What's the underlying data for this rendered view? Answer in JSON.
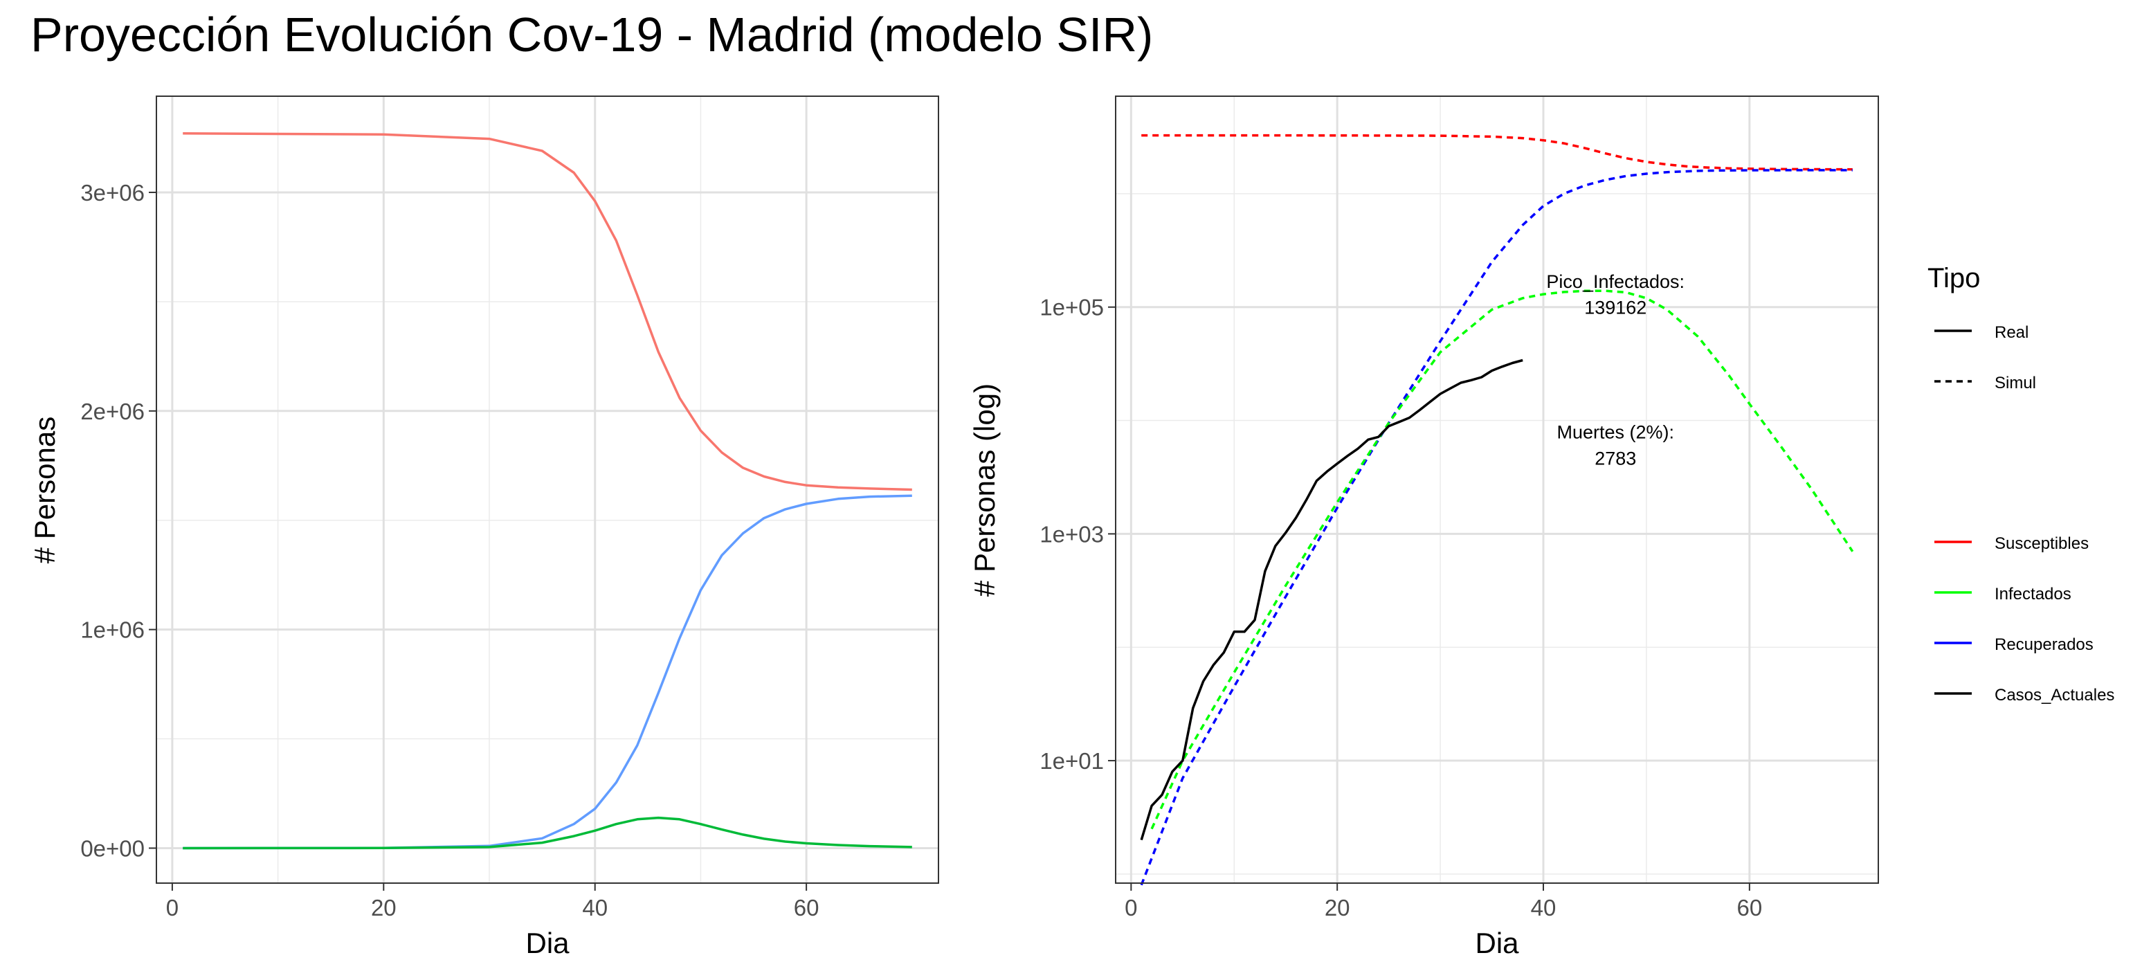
{
  "title": "Proyección Evolución Cov-19 - Madrid (modelo SIR)",
  "colors": {
    "susceptibles_left": "#F8766D",
    "recuperados_left": "#619CFF",
    "infectados_left": "#00BA38",
    "susceptibles": "#FF0000",
    "infectados": "#00FF00",
    "recuperados": "#0000FF",
    "casos": "#000000"
  },
  "chart_data": [
    {
      "type": "line",
      "panel": "left",
      "xlabel": "Dia",
      "ylabel": "# Personas",
      "xlim": [
        -1.5,
        72.5
      ],
      "ylim": [
        -160000,
        3440000
      ],
      "xticks": [
        0,
        20,
        40,
        60
      ],
      "xtick_labels": [
        "0",
        "20",
        "40",
        "60"
      ],
      "yticks": [
        0,
        1000000,
        2000000,
        3000000
      ],
      "ytick_labels": [
        "0e+00",
        "1e+06",
        "2e+06",
        "3e+06"
      ],
      "grid": true,
      "x": [
        1,
        20,
        30,
        35,
        38,
        40,
        42,
        44,
        46,
        48,
        50,
        52,
        54,
        56,
        58,
        60,
        63,
        66,
        70
      ],
      "series": [
        {
          "name": "Susceptibles",
          "values": [
            3270000,
            3265000,
            3245000,
            3190000,
            3090000,
            2960000,
            2780000,
            2530000,
            2270000,
            2060000,
            1910000,
            1810000,
            1740000,
            1700000,
            1675000,
            1660000,
            1650000,
            1645000,
            1640000
          ]
        },
        {
          "name": "Recuperados",
          "values": [
            0,
            1000,
            10000,
            45000,
            110000,
            180000,
            300000,
            470000,
            710000,
            960000,
            1180000,
            1340000,
            1440000,
            1510000,
            1550000,
            1575000,
            1598000,
            1608000,
            1612000
          ]
        },
        {
          "name": "Infectados",
          "values": [
            0,
            500,
            5000,
            25000,
            55000,
            80000,
            110000,
            132000,
            139000,
            132000,
            110000,
            85000,
            62000,
            43000,
            30000,
            22000,
            14000,
            9000,
            5000
          ]
        }
      ]
    },
    {
      "type": "line",
      "panel": "right",
      "scale": "log",
      "xlabel": "Dia",
      "ylabel": "# Personas (log)",
      "xlim": [
        -1.5,
        72.5
      ],
      "ylim_log10": [
        -0.08,
        6.86
      ],
      "xticks": [
        0,
        20,
        40,
        60
      ],
      "xtick_labels": [
        "0",
        "20",
        "40",
        "60"
      ],
      "yticks": [
        10,
        1000,
        100000
      ],
      "ytick_labels": [
        "1e+01",
        "1e+03",
        "1e+05"
      ],
      "grid": true,
      "annotations": [
        {
          "text": "Pico_Infectados:",
          "x": 47,
          "y": 170000
        },
        {
          "text": "139162",
          "x": 47,
          "y": 100000
        },
        {
          "text": "Muertes (2%):",
          "x": 47,
          "y": 8000
        },
        {
          "text": "2783",
          "x": 47,
          "y": 4700
        }
      ],
      "series": [
        {
          "name": "Susceptibles",
          "tipo": "Simul",
          "x": [
            1,
            20,
            30,
            35,
            38,
            40,
            42,
            44,
            46,
            48,
            50,
            52,
            54,
            56,
            58,
            60,
            63,
            66,
            70
          ],
          "values": [
            3270000,
            3265000,
            3245000,
            3190000,
            3090000,
            2960000,
            2780000,
            2530000,
            2270000,
            2060000,
            1910000,
            1810000,
            1740000,
            1700000,
            1675000,
            1660000,
            1650000,
            1645000,
            1640000
          ]
        },
        {
          "name": "Recuperados",
          "tipo": "Simul",
          "x": [
            1,
            5,
            10,
            15,
            20,
            25,
            30,
            35,
            38,
            40,
            42,
            44,
            46,
            48,
            50,
            52,
            55,
            58,
            60,
            65,
            70
          ],
          "values": [
            0.8,
            7,
            45,
            280,
            1700,
            9500,
            50000,
            250000,
            530000,
            780000,
            1000000,
            1180000,
            1320000,
            1430000,
            1500000,
            1550000,
            1590000,
            1605000,
            1610000,
            1612000,
            1612000
          ]
        },
        {
          "name": "Infectados",
          "tipo": "Simul",
          "x": [
            2,
            5,
            10,
            15,
            20,
            25,
            30,
            35,
            38,
            40,
            42,
            44,
            46,
            48,
            50,
            52,
            55,
            58,
            60,
            63,
            66,
            70
          ],
          "values": [
            2.5,
            10,
            60,
            350,
            1900,
            9500,
            40000,
            95000,
            120000,
            130000,
            136000,
            139000,
            139162,
            135000,
            120000,
            95000,
            55000,
            25000,
            14000,
            6000,
            2500,
            700
          ]
        },
        {
          "name": "Casos_Actuales",
          "tipo": "Real",
          "x": [
            1,
            2,
            3,
            4,
            5,
            6,
            7,
            8,
            9,
            10,
            11,
            12,
            13,
            14,
            15,
            16,
            17,
            18,
            19,
            20,
            21,
            22,
            23,
            24,
            25,
            26,
            27,
            28,
            29,
            30,
            31,
            32,
            33,
            34,
            35,
            36,
            37,
            38
          ],
          "values": [
            2,
            4,
            5,
            8,
            10,
            29,
            50,
            70,
            90,
            137,
            137,
            174,
            469,
            782,
            1024,
            1388,
            1990,
            2940,
            3544,
            4165,
            4871,
            5637,
            6777,
            7165,
            8921,
            9702,
            10575,
            12352,
            14597,
            17166,
            19243,
            21520,
            22677,
            24090,
            27509,
            29840,
            32155,
            34000
          ]
        }
      ]
    }
  ],
  "legend": {
    "title": "Tipo",
    "linetype": [
      {
        "label": "Real"
      },
      {
        "label": "Simul"
      }
    ],
    "colour": [
      {
        "label": "Susceptibles"
      },
      {
        "label": "Infectados"
      },
      {
        "label": "Recuperados"
      },
      {
        "label": "Casos_Actuales"
      }
    ]
  }
}
